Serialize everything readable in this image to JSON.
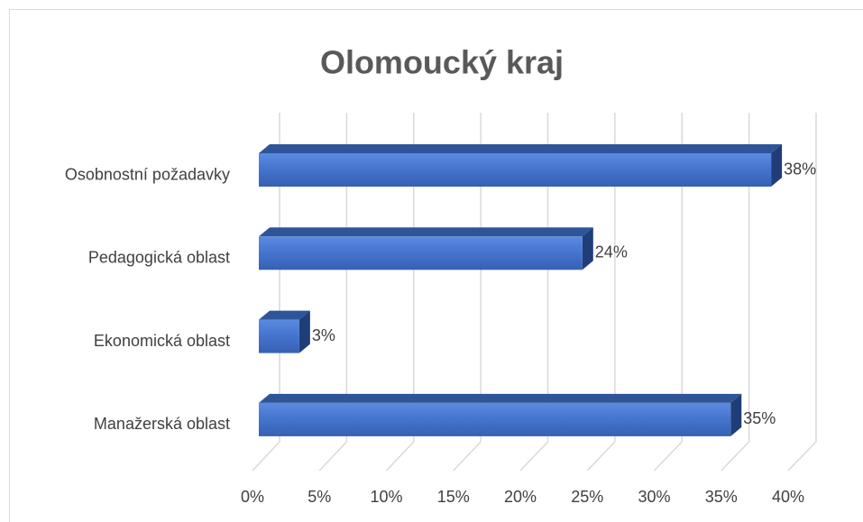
{
  "chart_data": {
    "type": "bar3d_horizontal",
    "title": "Olomoucký kraj",
    "categories": [
      "Osobnostní požadavky",
      "Pedagogická oblast",
      "Ekonomická oblast",
      "Manažerská oblast"
    ],
    "values": [
      38,
      24,
      3,
      35
    ],
    "value_labels": [
      "38%",
      "24%",
      "3%",
      "35%"
    ],
    "color": "#4472c4",
    "xlim": [
      0,
      40
    ],
    "xticks": [
      {
        "value": 0,
        "label": "0%"
      },
      {
        "value": 5,
        "label": "5%"
      },
      {
        "value": 10,
        "label": "10%"
      },
      {
        "value": 15,
        "label": "15%"
      },
      {
        "value": 20,
        "label": "20%"
      },
      {
        "value": 25,
        "label": "25%"
      },
      {
        "value": 30,
        "label": "30%"
      },
      {
        "value": 35,
        "label": "35%"
      },
      {
        "value": 40,
        "label": "40%"
      }
    ],
    "grid": true
  }
}
